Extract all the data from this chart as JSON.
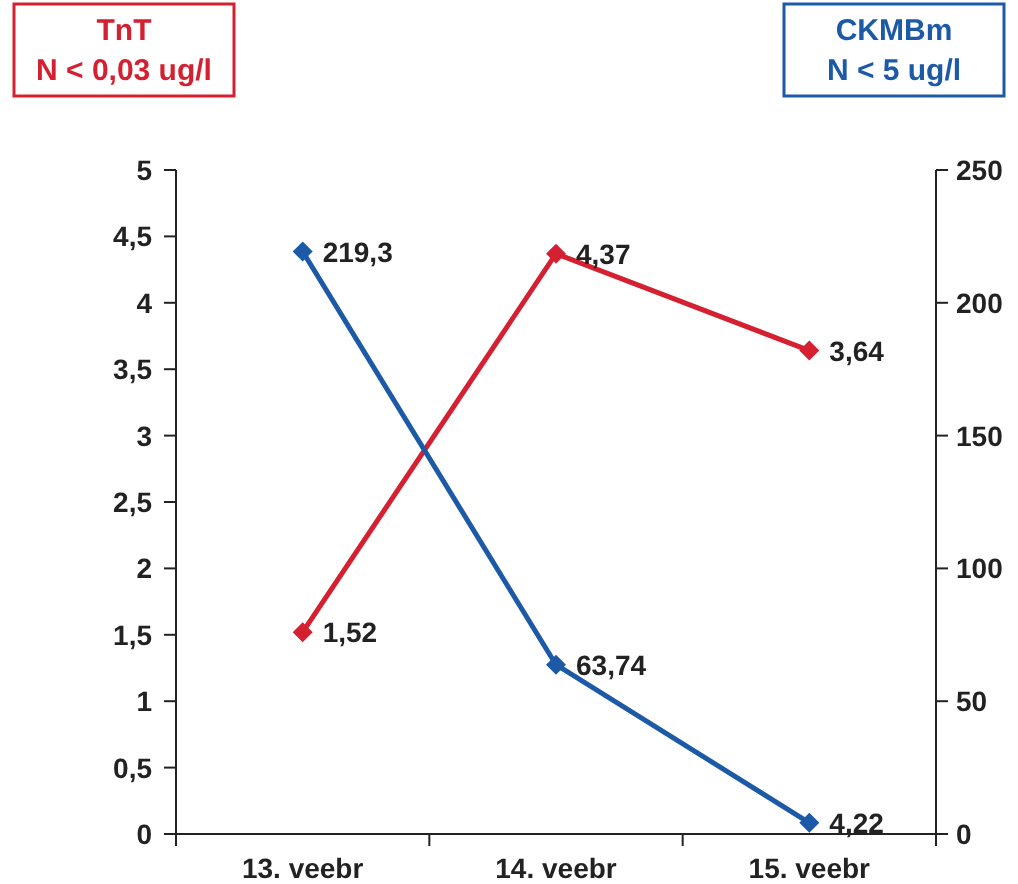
{
  "chart_data": {
    "type": "line",
    "categories": [
      "13. veebr",
      "14. veebr",
      "15. veebr"
    ],
    "ylabel": "TnT\nN < 0,03 ug/l",
    "y2label": "CKMBm\nN < 5 ug/l",
    "ylim": [
      0,
      5
    ],
    "yticks": [
      0,
      {
        "value": 0.5,
        "label": "0,5"
      },
      1,
      {
        "value": 1.5,
        "label": "1,5"
      },
      2,
      {
        "value": 2.5,
        "label": "2,5"
      },
      3,
      {
        "value": 3.5,
        "label": "3,5"
      },
      4,
      {
        "value": 4.5,
        "label": "4,5"
      },
      5
    ],
    "y2lim": [
      0,
      250
    ],
    "y2ticks": [
      0,
      50,
      100,
      150,
      200,
      250
    ],
    "marker": "diamond",
    "line_style": "solid",
    "grid": false,
    "series": [
      {
        "color": "#d42030",
        "values": [
          1.52,
          4.37,
          3.64
        ],
        "value_labels": [
          "1,52",
          "4,37",
          "3,64"
        ]
      },
      {
        "color": "#1c5aa8",
        "axis": "y2",
        "values": [
          219.3,
          63.74,
          4.22
        ],
        "value_labels": [
          "219,3",
          "63,74",
          "4,22"
        ]
      }
    ]
  }
}
